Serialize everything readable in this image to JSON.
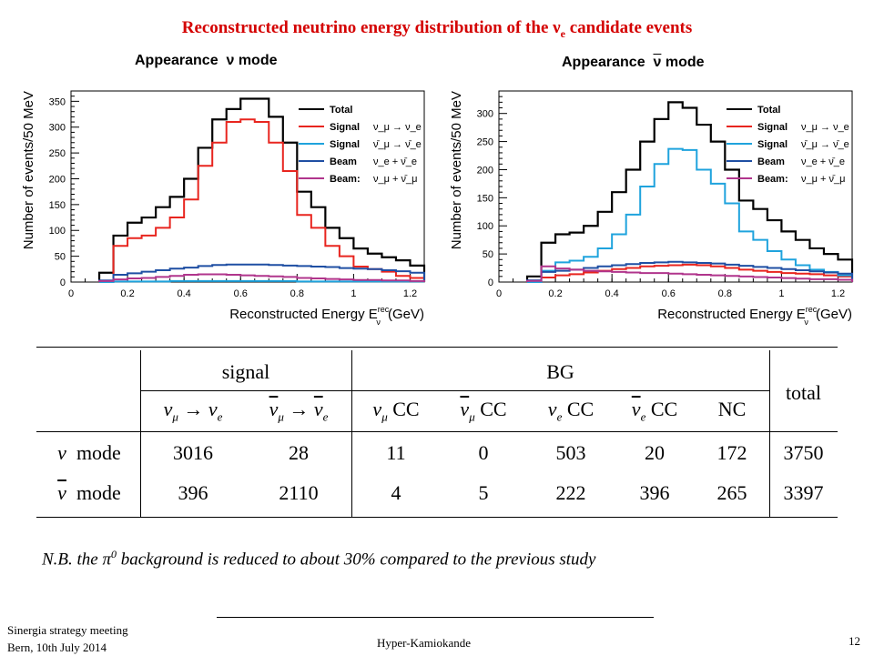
{
  "slide": {
    "title": "Reconstructed neutrino energy distribution of the ν",
    "title_sub": "e",
    "title_tail": " candidate events"
  },
  "panels": {
    "left_title_a": "Appearance",
    "left_title_b": "ν mode",
    "right_title_a": "Appearance",
    "right_title_nu": "ν",
    "right_title_b": " mode"
  },
  "chart_data": [
    {
      "type": "line",
      "step": true,
      "xlabel": "Reconstructed Energy E",
      "xlabel_sup": "rec",
      "xlabel_sub": "ν",
      "xlabel_unit": " (GeV)",
      "ylabel": "Number of events/50 MeV",
      "xlim": [
        0,
        1.25
      ],
      "ylim": [
        0,
        370
      ],
      "xticks": [
        "0",
        "0.2",
        "0.4",
        "0.6",
        "0.8",
        "1",
        "1.2"
      ],
      "xtick_values": [
        0,
        0.2,
        0.4,
        0.6,
        0.8,
        1.0,
        1.2
      ],
      "yticks": [
        "0",
        "50",
        "100",
        "150",
        "200",
        "250",
        "300",
        "350"
      ],
      "ytick_values": [
        0,
        50,
        100,
        150,
        200,
        250,
        300,
        350
      ],
      "bin_edges": [
        0.1,
        0.15,
        0.2,
        0.25,
        0.3,
        0.35,
        0.4,
        0.45,
        0.5,
        0.55,
        0.6,
        0.65,
        0.7,
        0.75,
        0.8,
        0.85,
        0.9,
        0.95,
        1.0,
        1.05,
        1.1,
        1.15,
        1.2,
        1.25
      ],
      "series": [
        {
          "name": "Total",
          "color": "#000000",
          "values": [
            18,
            90,
            115,
            125,
            145,
            165,
            200,
            260,
            315,
            335,
            355,
            355,
            320,
            270,
            175,
            145,
            105,
            85,
            65,
            55,
            48,
            42,
            32
          ]
        },
        {
          "name": "Signal",
          "label_math": "ν_μ → ν_e",
          "color": "#e8251f",
          "values": [
            0,
            70,
            85,
            90,
            105,
            125,
            160,
            225,
            270,
            310,
            315,
            310,
            270,
            215,
            130,
            105,
            70,
            50,
            30,
            25,
            20,
            12,
            8
          ]
        },
        {
          "name": "Signal",
          "label_math": "ν̄_μ → ν̄_e",
          "color": "#1fa3dd",
          "values": [
            0,
            1,
            1,
            1,
            1,
            2,
            2,
            2,
            2,
            2,
            2,
            2,
            2,
            2,
            1,
            1,
            1,
            1,
            1,
            1,
            1,
            1,
            1
          ]
        },
        {
          "name": "Beam",
          "label_math": "ν_e + ν̄_e",
          "color": "#1f4fa3",
          "values": [
            3,
            14,
            17,
            20,
            23,
            26,
            28,
            31,
            33,
            34,
            34,
            34,
            33,
            32,
            31,
            30,
            29,
            27,
            26,
            25,
            23,
            21,
            18
          ]
        },
        {
          "name": "Beam:",
          "label_math": "ν_μ + ν̄_μ",
          "color": "#b0358c",
          "values": [
            2,
            5,
            7,
            8,
            10,
            12,
            14,
            15,
            15,
            14,
            13,
            12,
            11,
            10,
            8,
            7,
            6,
            5,
            4,
            4,
            3,
            3,
            2
          ]
        }
      ],
      "legend": "top-right"
    },
    {
      "type": "line",
      "step": true,
      "xlabel": "Reconstructed Energy E",
      "xlabel_sup": "rec",
      "xlabel_sub": "ν",
      "xlabel_unit": " (GeV)",
      "ylabel": "Number of events/50 MeV",
      "xlim": [
        0,
        1.25
      ],
      "ylim": [
        0,
        340
      ],
      "xticks": [
        "0",
        "0.2",
        "0.4",
        "0.6",
        "0.8",
        "1",
        "1.2"
      ],
      "xtick_values": [
        0,
        0.2,
        0.4,
        0.6,
        0.8,
        1.0,
        1.2
      ],
      "yticks": [
        "0",
        "50",
        "100",
        "150",
        "200",
        "250",
        "300"
      ],
      "ytick_values": [
        0,
        50,
        100,
        150,
        200,
        250,
        300
      ],
      "bin_edges": [
        0.1,
        0.15,
        0.2,
        0.25,
        0.3,
        0.35,
        0.4,
        0.45,
        0.5,
        0.55,
        0.6,
        0.65,
        0.7,
        0.75,
        0.8,
        0.85,
        0.9,
        0.95,
        1.0,
        1.05,
        1.1,
        1.15,
        1.2,
        1.25
      ],
      "series": [
        {
          "name": "Total",
          "color": "#000000",
          "values": [
            10,
            70,
            85,
            88,
            100,
            125,
            160,
            200,
            250,
            290,
            320,
            310,
            280,
            250,
            200,
            145,
            130,
            110,
            90,
            75,
            60,
            50,
            40
          ]
        },
        {
          "name": "Signal",
          "label_math": "ν_μ → ν_e",
          "color": "#e8251f",
          "values": [
            2,
            8,
            12,
            14,
            17,
            20,
            23,
            25,
            28,
            29,
            30,
            31,
            30,
            28,
            25,
            22,
            20,
            18,
            16,
            15,
            14,
            12,
            10
          ]
        },
        {
          "name": "Signal",
          "label_math": "ν̄_μ → ν̄_e",
          "color": "#1fa3dd",
          "values": [
            0,
            20,
            35,
            38,
            45,
            60,
            85,
            120,
            170,
            210,
            237,
            235,
            200,
            175,
            140,
            90,
            75,
            55,
            40,
            30,
            22,
            18,
            12
          ]
        },
        {
          "name": "Beam",
          "label_math": "ν_e + ν̄_e",
          "color": "#1f4fa3",
          "values": [
            3,
            18,
            20,
            22,
            25,
            28,
            30,
            32,
            34,
            35,
            36,
            35,
            34,
            33,
            31,
            29,
            27,
            25,
            23,
            21,
            19,
            17,
            15
          ]
        },
        {
          "name": "Beam:",
          "label_math": "ν_μ + ν̄_μ",
          "color": "#b0358c",
          "values": [
            2,
            28,
            24,
            22,
            20,
            19,
            18,
            17,
            16,
            16,
            15,
            14,
            13,
            12,
            11,
            10,
            9,
            8,
            7,
            6,
            5,
            5,
            4
          ]
        }
      ],
      "legend": "top-right"
    },
    {
      "type": "table",
      "header_group": [
        "signal",
        "BG"
      ],
      "columns": [
        "ν_μ → ν_e",
        "ν̄_μ → ν̄_e",
        "ν_μ CC",
        "ν̄_μ CC",
        "ν_e CC",
        "ν̄_e CC",
        "NC",
        "total"
      ],
      "rows": [
        {
          "label": "ν mode",
          "values": [
            "3016",
            "28",
            "11",
            "0",
            "503",
            "20",
            "172",
            "3750"
          ]
        },
        {
          "label": "ν̄ mode",
          "values": [
            "396",
            "2110",
            "4",
            "5",
            "222",
            "396",
            "265",
            "3397"
          ]
        }
      ]
    }
  ],
  "table": {
    "signal": "signal",
    "bg": "BG",
    "total": "total",
    "cc": "CC",
    "nc": "NC",
    "row1_mode": "mode",
    "row2_mode": "mode",
    "r1": [
      "3016",
      "28",
      "11",
      "0",
      "503",
      "20",
      "172",
      "3750"
    ],
    "r2": [
      "396",
      "2110",
      "4",
      "5",
      "222",
      "396",
      "265",
      "3397"
    ]
  },
  "footnote": {
    "pre": "N.B. the π",
    "sup": "0",
    "post": " background is reduced to about 30% compared to the previous study"
  },
  "footer": {
    "meeting_line1": "Sinergia strategy meeting",
    "meeting_line2": "Bern, 10th July 2014",
    "center": "Hyper-Kamiokande",
    "page": "12"
  }
}
